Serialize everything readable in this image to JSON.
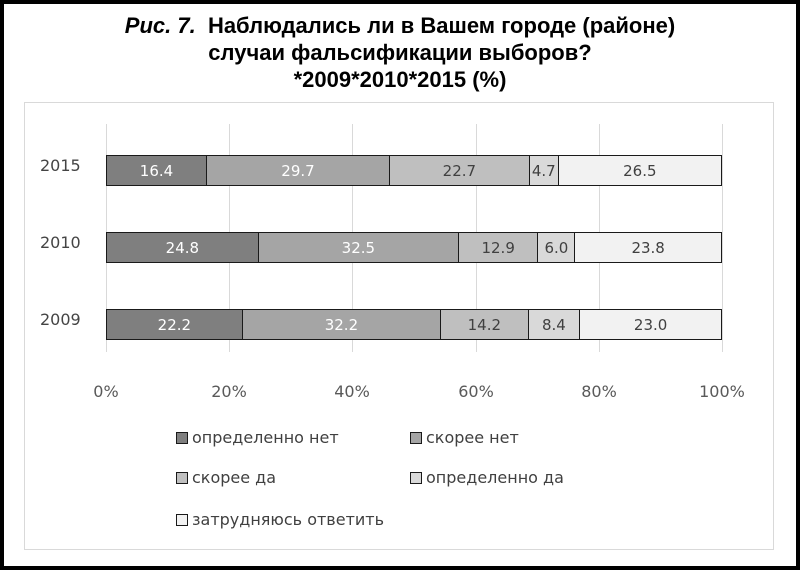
{
  "title": {
    "figure_label": "Рис. 7.",
    "line1": "Наблюдались ли в Вашем городе (районе)",
    "line2": "случаи фальсификации выборов?",
    "line3": "*2009*2010*2015 (%)"
  },
  "colors": {
    "definitely_no": "#7f7f7f",
    "rather_no": "#a5a5a5",
    "rather_yes": "#bfbfbf",
    "definitely_yes": "#d9d9d9",
    "hard_to_say": "#f2f2f2"
  },
  "chart_data": {
    "type": "bar",
    "orientation": "horizontal",
    "stacked": "percent",
    "title": "Рис. 7. Наблюдались ли в Вашем городе (районе) случаи фальсификации выборов? *2009*2010*2015 (%)",
    "categories": [
      "2015",
      "2010",
      "2009"
    ],
    "series": [
      {
        "name": "определенно нет",
        "values": [
          16.4,
          24.8,
          22.2
        ]
      },
      {
        "name": "скорее нет",
        "values": [
          29.7,
          32.5,
          32.2
        ]
      },
      {
        "name": "скорее да",
        "values": [
          22.7,
          12.9,
          14.2
        ]
      },
      {
        "name": "определенно да",
        "values": [
          4.7,
          6.0,
          8.4
        ]
      },
      {
        "name": "затрудняюсь ответить",
        "values": [
          26.5,
          23.8,
          23.0
        ]
      }
    ],
    "x_ticks": [
      "0%",
      "20%",
      "40%",
      "60%",
      "80%",
      "100%"
    ],
    "xlim": [
      0,
      100
    ],
    "xlabel": "",
    "ylabel": "",
    "grid": "vertical",
    "legend_position": "bottom",
    "data_labels": true
  },
  "axis": {
    "x_ticks": [
      "0%",
      "20%",
      "40%",
      "60%",
      "80%",
      "100%"
    ],
    "y_labels": [
      "2015",
      "2010",
      "2009"
    ]
  },
  "bars": [
    {
      "year": "2015",
      "segments": [
        "16.4",
        "29.7",
        "22.7",
        "4.7",
        "26.5"
      ],
      "values": [
        16.4,
        29.7,
        22.7,
        4.7,
        26.5
      ]
    },
    {
      "year": "2010",
      "segments": [
        "24.8",
        "32.5",
        "12.9",
        "6.0",
        "23.8"
      ],
      "values": [
        24.8,
        32.5,
        12.9,
        6.0,
        23.8
      ]
    },
    {
      "year": "2009",
      "segments": [
        "22.2",
        "32.2",
        "14.2",
        "8.4",
        "23.0"
      ],
      "values": [
        22.2,
        32.2,
        14.2,
        8.4,
        23.0
      ]
    }
  ],
  "legend": [
    {
      "label": "определенно нет"
    },
    {
      "label": "скорее нет"
    },
    {
      "label": "скорее да"
    },
    {
      "label": "определенно да"
    },
    {
      "label": "затрудняюсь ответить"
    }
  ]
}
